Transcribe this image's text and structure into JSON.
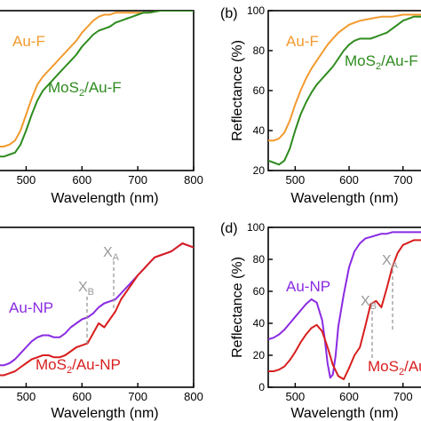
{
  "figure": {
    "panel_b_label": "(b)",
    "panel_d_label": "(d)",
    "colors": {
      "au": "#F29A2E",
      "mos2_au_f": "#2E8B1E",
      "au_np": "#8A2BE2",
      "mos2_au_np": "#D81E1E",
      "axis": "#000000",
      "marker": "#999999"
    }
  },
  "chart_data": [
    {
      "id": "a",
      "type": "line",
      "title": "",
      "xlabel": "Wavelength (nm)",
      "ylabel": "",
      "xlim": [
        450,
        800
      ],
      "ylim": [
        20,
        100
      ],
      "xticks": [
        "500",
        "600",
        "700",
        "800"
      ],
      "yticks": [],
      "series": [
        {
          "name": "Au-F",
          "x": [
            450,
            460,
            470,
            480,
            490,
            500,
            510,
            520,
            530,
            540,
            550,
            560,
            570,
            580,
            590,
            600,
            610,
            620,
            630,
            640,
            650,
            660,
            670,
            680,
            690,
            700,
            710,
            720,
            740,
            760,
            780,
            800
          ],
          "values": [
            32,
            32,
            33,
            35,
            40,
            48,
            56,
            63,
            67,
            70,
            73,
            76,
            79,
            82,
            85,
            89,
            92,
            95,
            97,
            98,
            98,
            99,
            99,
            99,
            99,
            99,
            99,
            99,
            100,
            100,
            100,
            100
          ]
        },
        {
          "name": "MoS2/Au-F",
          "x": [
            450,
            460,
            470,
            480,
            490,
            500,
            510,
            520,
            530,
            540,
            550,
            560,
            570,
            580,
            590,
            600,
            610,
            620,
            630,
            640,
            650,
            660,
            670,
            680,
            690,
            700,
            710,
            720,
            740,
            760,
            780,
            800
          ],
          "values": [
            27,
            27,
            28,
            29,
            33,
            40,
            48,
            55,
            60,
            63,
            66,
            69,
            72,
            75,
            78,
            82,
            85,
            88,
            90,
            91,
            92,
            94,
            95,
            96,
            97,
            98,
            99,
            99,
            100,
            100,
            100,
            100
          ]
        }
      ],
      "labels": {
        "au": "Au-F",
        "mos2_prefix": "MoS",
        "mos2_sub": "2",
        "mos2_suffix": "/Au-F"
      }
    },
    {
      "id": "b",
      "type": "line",
      "title": "",
      "xlabel": "Wavelength (nm)",
      "ylabel": "Reflectance (%)",
      "xlim": [
        450,
        740
      ],
      "ylim": [
        20,
        100
      ],
      "xticks": [
        "500",
        "600",
        "700"
      ],
      "yticks": [
        "20",
        "40",
        "60",
        "80",
        "100"
      ],
      "series": [
        {
          "name": "Au-F",
          "x": [
            450,
            460,
            470,
            480,
            490,
            500,
            510,
            520,
            530,
            540,
            550,
            560,
            570,
            580,
            590,
            600,
            620,
            640,
            660,
            680,
            700,
            720,
            740
          ],
          "values": [
            35,
            35,
            36,
            39,
            45,
            53,
            60,
            66,
            71,
            75,
            79,
            83,
            86,
            89,
            91,
            93,
            95,
            96,
            97,
            97,
            98,
            98,
            98
          ]
        },
        {
          "name": "MoS2/Au-F",
          "x": [
            450,
            460,
            470,
            480,
            490,
            500,
            510,
            520,
            530,
            540,
            550,
            560,
            570,
            580,
            590,
            600,
            610,
            620,
            630,
            640,
            650,
            660,
            670,
            680,
            690,
            700,
            720,
            740
          ],
          "values": [
            25,
            24,
            23,
            25,
            31,
            40,
            48,
            54,
            59,
            63,
            66,
            69,
            72,
            76,
            80,
            83,
            85,
            86,
            86,
            86,
            87,
            88,
            89,
            91,
            93,
            95,
            97,
            97
          ]
        }
      ],
      "labels": {
        "au": "Au-F",
        "mos2_prefix": "MoS",
        "mos2_sub": "2",
        "mos2_suffix": "/Au-F"
      }
    },
    {
      "id": "c",
      "type": "line",
      "title": "",
      "xlabel": "Wavelength (nm)",
      "ylabel": "",
      "xlim": [
        450,
        800
      ],
      "ylim": [
        20,
        100
      ],
      "xticks": [
        "500",
        "600",
        "700",
        "800"
      ],
      "yticks": [],
      "series": [
        {
          "name": "Au-NP",
          "x": [
            450,
            460,
            470,
            480,
            490,
            500,
            510,
            520,
            530,
            540,
            550,
            560,
            570,
            580,
            590,
            600,
            610,
            620,
            630,
            640,
            650,
            660,
            670,
            680,
            690,
            700,
            710,
            720,
            730,
            740,
            750,
            760,
            770,
            780,
            790,
            800
          ],
          "values": [
            31,
            31,
            32,
            34,
            37,
            40,
            43,
            45,
            46,
            46,
            45,
            45,
            47,
            50,
            52,
            54,
            55,
            57,
            60,
            62,
            63,
            64,
            67,
            70,
            73,
            76,
            79,
            82,
            85,
            86,
            87,
            88,
            90,
            92,
            91,
            90
          ]
        },
        {
          "name": "MoS2/Au-NP",
          "x": [
            450,
            460,
            470,
            480,
            490,
            500,
            510,
            520,
            530,
            540,
            550,
            560,
            570,
            580,
            590,
            600,
            610,
            620,
            630,
            640,
            650,
            660,
            670,
            680,
            690,
            700,
            710,
            720,
            730,
            740,
            750,
            760,
            770,
            780,
            790,
            800
          ],
          "values": [
            26,
            26,
            27,
            28,
            30,
            32,
            34,
            35,
            36,
            36,
            35,
            35,
            36,
            38,
            40,
            41,
            42,
            47,
            52,
            50,
            54,
            58,
            64,
            68,
            72,
            76,
            79,
            82,
            85,
            86,
            87,
            88,
            90,
            92,
            91,
            90
          ]
        }
      ],
      "annotations": {
        "xb": "X",
        "xb_sub": "B",
        "xa": "X",
        "xa_sub": "A"
      },
      "labels": {
        "au": "Au-NP",
        "mos2_prefix": "MoS",
        "mos2_sub": "2",
        "mos2_suffix": "/Au-NP"
      }
    },
    {
      "id": "d",
      "type": "line",
      "title": "",
      "xlabel": "Wavelength (nm)",
      "ylabel": "Reflectance (%)",
      "xlim": [
        450,
        740
      ],
      "ylim": [
        0,
        100
      ],
      "xticks": [
        "500",
        "600",
        "700"
      ],
      "yticks": [
        "0",
        "20",
        "40",
        "60",
        "80",
        "100"
      ],
      "series": [
        {
          "name": "Au-NP",
          "x": [
            450,
            460,
            470,
            480,
            490,
            500,
            510,
            520,
            530,
            540,
            550,
            555,
            560,
            565,
            570,
            575,
            580,
            590,
            600,
            610,
            620,
            630,
            640,
            650,
            660,
            670,
            680,
            700,
            720,
            740
          ],
          "values": [
            30,
            31,
            33,
            36,
            40,
            44,
            48,
            52,
            55,
            53,
            42,
            30,
            15,
            6,
            8,
            20,
            38,
            58,
            75,
            85,
            90,
            93,
            94,
            95,
            96,
            96,
            97,
            97,
            97,
            97
          ]
        },
        {
          "name": "MoS2/Au-NP",
          "x": [
            450,
            460,
            470,
            480,
            490,
            500,
            510,
            520,
            530,
            540,
            550,
            560,
            570,
            580,
            590,
            600,
            610,
            620,
            630,
            640,
            650,
            660,
            670,
            680,
            690,
            700,
            720,
            740
          ],
          "values": [
            10,
            10,
            11,
            13,
            17,
            22,
            28,
            33,
            37,
            39,
            35,
            25,
            14,
            7,
            5,
            12,
            20,
            25,
            38,
            52,
            54,
            50,
            62,
            75,
            84,
            89,
            92,
            92
          ]
        }
      ],
      "annotations": {
        "xb": "X",
        "xb_sub": "B",
        "xa": "X",
        "xa_sub": "A"
      },
      "labels": {
        "au": "Au-NP",
        "mos2_prefix": "MoS",
        "mos2_sub": "2",
        "mos2_suffix": "/Au-NP"
      }
    }
  ]
}
